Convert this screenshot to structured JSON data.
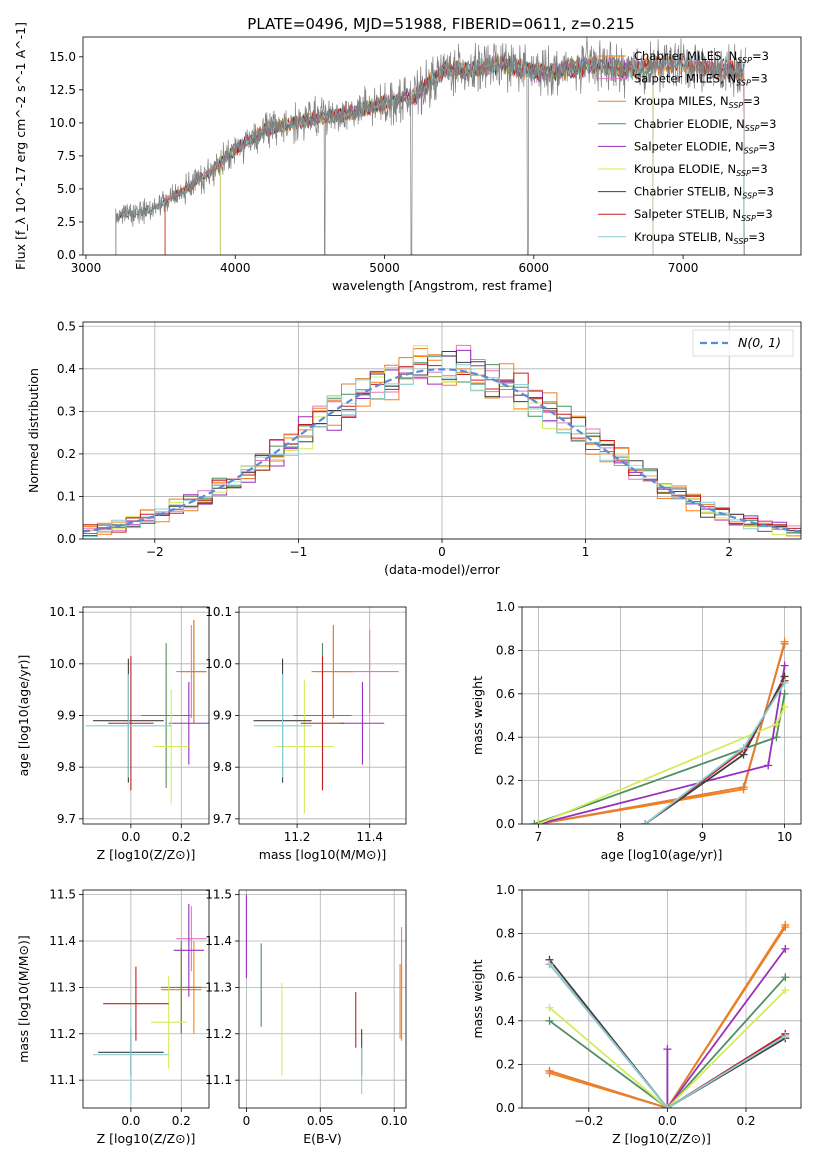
{
  "title": "PLATE=0496, MJD=51988, FIBERID=0611, z=0.215",
  "colors": {
    "Chabrier MILES": "#ff7f0e",
    "Salpeter MILES": "#e377c2",
    "Kroupa MILES": "#e08030",
    "Chabrier ELODIE": "#4f8f60",
    "Salpeter ELODIE": "#9a2fbd",
    "Kroupa ELODIE": "#d4ec5a",
    "Chabrier STELIB": "#404040",
    "Salpeter STELIB": "#c02020",
    "Kroupa STELIB": "#87cfd6",
    "gaussian": "#5b8bd8"
  },
  "chart_data": [
    {
      "id": "spectrum",
      "type": "line",
      "xlabel": "wavelength [Angstrom, rest frame]",
      "ylabel": "Flux [f_λ 10^-17 erg cm^-2 s^-1 A^-1]",
      "xlim": [
        2980,
        7790
      ],
      "ylim": [
        0,
        16.5
      ],
      "xticks": [
        "3000",
        "4000",
        "5000",
        "6000",
        "7000"
      ],
      "yticks": [
        "0.0",
        "2.5",
        "5.0",
        "7.5",
        "10.0",
        "12.5",
        "15.0"
      ],
      "legend_position": "top-right",
      "legend": [
        {
          "model": "Chabrier MILES",
          "nssp": 3
        },
        {
          "model": "Salpeter MILES",
          "nssp": 3
        },
        {
          "model": "Kroupa MILES",
          "nssp": 3
        },
        {
          "model": "Chabrier ELODIE",
          "nssp": 3
        },
        {
          "model": "Salpeter ELODIE",
          "nssp": 3
        },
        {
          "model": "Kroupa ELODIE",
          "nssp": 3
        },
        {
          "model": "Chabrier STELIB",
          "nssp": 3
        },
        {
          "model": "Salpeter STELIB",
          "nssp": 3
        },
        {
          "model": "Kroupa STELIB",
          "nssp": 3
        }
      ],
      "data_envelope": {
        "x": [
          3200,
          3400,
          3600,
          3800,
          4000,
          4200,
          4400,
          4600,
          4800,
          5000,
          5200,
          5400,
          5600,
          5800,
          6000,
          6200,
          6400,
          6600,
          6800,
          7000,
          7200,
          7400
        ],
        "y": [
          3.0,
          3.3,
          4.5,
          6.0,
          8.0,
          9.5,
          10.0,
          10.5,
          10.8,
          11.5,
          12.0,
          14.0,
          14.0,
          14.5,
          13.8,
          14.0,
          14.5,
          14.0,
          14.3,
          14.5,
          14.0,
          14.0
        ]
      }
    },
    {
      "id": "residuals",
      "type": "histogram",
      "xlabel": "(data-model)/error",
      "ylabel": "Normed distribution",
      "xlim": [
        -2.5,
        2.5
      ],
      "ylim": [
        0,
        0.51
      ],
      "xticks": [
        "−2",
        "−1",
        "0",
        "1",
        "2"
      ],
      "yticks": [
        "0.0",
        "0.1",
        "0.2",
        "0.3",
        "0.4",
        "0.5"
      ],
      "grid": true,
      "legend_position": "top-right",
      "legend_label": "N(0, 1)",
      "bin_width": 0.1
    },
    {
      "id": "age-vs-Z",
      "type": "scatter",
      "xlabel": "Z [log10(Z/Z⊙)]",
      "ylabel": "age [log10(age/yr)]",
      "xlim": [
        -0.19,
        0.31
      ],
      "ylim": [
        9.69,
        10.11
      ],
      "xticks": [
        "0.0",
        "0.2"
      ],
      "yticks": [
        "9.7",
        "9.8",
        "9.9",
        "10.0",
        "10.1"
      ],
      "grid": true,
      "points": [
        {
          "model": "Chabrier MILES",
          "x": 0.25,
          "xerr": 0.05,
          "y": 9.985,
          "yerr": 0.1
        },
        {
          "model": "Salpeter MILES",
          "x": 0.24,
          "xerr": 0.06,
          "y": 9.985,
          "yerr": 0.09
        },
        {
          "model": "Kroupa MILES",
          "x": 0.25,
          "xerr": 0.05,
          "y": 9.985,
          "yerr": 0.1
        },
        {
          "model": "Chabrier ELODIE",
          "x": 0.14,
          "xerr": 0.1,
          "y": 9.9,
          "yerr": 0.14
        },
        {
          "model": "Salpeter ELODIE",
          "x": 0.23,
          "xerr": 0.08,
          "y": 9.885,
          "yerr": 0.08
        },
        {
          "model": "Kroupa ELODIE",
          "x": 0.16,
          "xerr": 0.07,
          "y": 9.84,
          "yerr": 0.11
        },
        {
          "model": "Chabrier STELIB",
          "x": -0.01,
          "xerr": 0.14,
          "y": 9.89,
          "yerr": 0.12
        },
        {
          "model": "Salpeter STELIB",
          "x": 0.0,
          "xerr": 0.09,
          "y": 9.885,
          "yerr": 0.13
        },
        {
          "model": "Kroupa STELIB",
          "x": -0.01,
          "xerr": 0.17,
          "y": 9.88,
          "yerr": 0.1
        }
      ]
    },
    {
      "id": "age-vs-mass",
      "type": "scatter",
      "xlabel": "mass [log10(M/M⊙)]",
      "ylabel": "",
      "xlim": [
        11.04,
        11.5
      ],
      "ylim": [
        9.69,
        10.11
      ],
      "xticks": [
        "11.2",
        "11.4"
      ],
      "yticks": [
        "9.7",
        "9.8",
        "9.9",
        "10.0",
        "10.1"
      ],
      "grid": true,
      "points": [
        {
          "model": "Chabrier MILES",
          "x": 11.3,
          "xerr": 0.06,
          "y": 9.985,
          "yerr": 0.09
        },
        {
          "model": "Salpeter MILES",
          "x": 11.4,
          "xerr": 0.08,
          "y": 9.985,
          "yerr": 0.08
        },
        {
          "model": "Kroupa MILES",
          "x": 11.3,
          "xerr": 0.05,
          "y": 9.985,
          "yerr": 0.09
        },
        {
          "model": "Chabrier ELODIE",
          "x": 11.27,
          "xerr": 0.08,
          "y": 9.9,
          "yerr": 0.14
        },
        {
          "model": "Salpeter ELODIE",
          "x": 11.38,
          "xerr": 0.06,
          "y": 9.885,
          "yerr": 0.08
        },
        {
          "model": "Kroupa ELODIE",
          "x": 11.22,
          "xerr": 0.08,
          "y": 9.84,
          "yerr": 0.13
        },
        {
          "model": "Chabrier STELIB",
          "x": 11.16,
          "xerr": 0.08,
          "y": 9.89,
          "yerr": 0.12
        },
        {
          "model": "Salpeter STELIB",
          "x": 11.27,
          "xerr": 0.06,
          "y": 9.885,
          "yerr": 0.13
        },
        {
          "model": "Kroupa STELIB",
          "x": 11.16,
          "xerr": 0.08,
          "y": 9.88,
          "yerr": 0.1
        }
      ]
    },
    {
      "id": "weight-vs-age",
      "type": "line",
      "xlabel": "age  [log10(age/yr)]",
      "ylabel": "mass weight",
      "xlim": [
        6.8,
        10.2
      ],
      "ylim": [
        0,
        1.0
      ],
      "xticks": [
        "7",
        "8",
        "9",
        "10"
      ],
      "yticks": [
        "0.0",
        "0.2",
        "0.4",
        "0.6",
        "0.8",
        "1.0"
      ],
      "grid": true,
      "series": [
        {
          "model": "Chabrier MILES",
          "x": [
            7.0,
            9.5,
            10.0
          ],
          "y": [
            0.0,
            0.16,
            0.84
          ]
        },
        {
          "model": "Salpeter MILES",
          "x": [
            7.0,
            9.5,
            10.0
          ],
          "y": [
            0.0,
            0.17,
            0.83
          ]
        },
        {
          "model": "Kroupa MILES",
          "x": [
            7.0,
            9.5,
            10.0
          ],
          "y": [
            0.0,
            0.17,
            0.83
          ]
        },
        {
          "model": "Chabrier ELODIE",
          "x": [
            6.95,
            9.9,
            10.0
          ],
          "y": [
            0.0,
            0.4,
            0.6
          ]
        },
        {
          "model": "Salpeter ELODIE",
          "x": [
            7.0,
            9.8,
            10.0
          ],
          "y": [
            0.0,
            0.27,
            0.73
          ]
        },
        {
          "model": "Kroupa ELODIE",
          "x": [
            7.0,
            9.9,
            10.0
          ],
          "y": [
            0.0,
            0.46,
            0.54
          ]
        },
        {
          "model": "Chabrier STELIB",
          "x": [
            8.3,
            9.5,
            10.0
          ],
          "y": [
            0.0,
            0.32,
            0.68
          ]
        },
        {
          "model": "Salpeter STELIB",
          "x": [
            8.3,
            9.5,
            10.0
          ],
          "y": [
            0.0,
            0.34,
            0.66
          ]
        },
        {
          "model": "Kroupa STELIB",
          "x": [
            8.3,
            9.5,
            10.0
          ],
          "y": [
            0.0,
            0.35,
            0.65
          ]
        }
      ]
    },
    {
      "id": "mass-vs-Z",
      "type": "scatter",
      "xlabel": "Z [log10(Z/Z⊙)]",
      "ylabel": "mass [log10(M/M⊙)]",
      "xlim": [
        -0.19,
        0.31
      ],
      "ylim": [
        11.04,
        11.51
      ],
      "xticks": [
        "0.0",
        "0.2"
      ],
      "yticks": [
        "11.1",
        "11.2",
        "11.3",
        "11.4",
        "11.5"
      ],
      "grid": true,
      "points": [
        {
          "model": "Chabrier MILES",
          "x": 0.25,
          "xerr": 0.05,
          "y": 11.3,
          "yerr": 0.1
        },
        {
          "model": "Salpeter MILES",
          "x": 0.24,
          "xerr": 0.06,
          "y": 11.405,
          "yerr": 0.07
        },
        {
          "model": "Kroupa MILES",
          "x": 0.2,
          "xerr": 0.08,
          "y": 11.295,
          "yerr": 0.09
        },
        {
          "model": "Chabrier ELODIE",
          "x": 0.2,
          "xerr": 0.08,
          "y": 11.3,
          "yerr": 0.1
        },
        {
          "model": "Salpeter ELODIE",
          "x": 0.23,
          "xerr": 0.06,
          "y": 11.38,
          "yerr": 0.1
        },
        {
          "model": "Kroupa ELODIE",
          "x": 0.15,
          "xerr": 0.07,
          "y": 11.225,
          "yerr": 0.1
        },
        {
          "model": "Chabrier STELIB",
          "x": 0.0,
          "xerr": 0.13,
          "y": 11.16,
          "yerr": 0.05
        },
        {
          "model": "Salpeter STELIB",
          "x": 0.02,
          "xerr": 0.13,
          "y": 11.265,
          "yerr": 0.08
        },
        {
          "model": "Kroupa STELIB",
          "x": 0.0,
          "xerr": 0.15,
          "y": 11.155,
          "yerr": 0.1
        }
      ]
    },
    {
      "id": "mass-vs-ebv",
      "type": "scatter",
      "xlabel": "E(B-V)",
      "ylabel": "",
      "xlim": [
        -0.005,
        0.108
      ],
      "ylim": [
        11.04,
        11.51
      ],
      "xticks": [
        "0",
        "0.05",
        "0.10"
      ],
      "yticks": [
        "11.1",
        "11.2",
        "11.3",
        "11.4",
        "11.5"
      ],
      "grid": true,
      "points": [
        {
          "model": "Chabrier MILES",
          "x": 0.105,
          "y": 11.265,
          "yerr": 0.08
        },
        {
          "model": "Salpeter MILES",
          "x": 0.105,
          "y": 11.36,
          "yerr": 0.07
        },
        {
          "model": "Kroupa MILES",
          "x": 0.104,
          "y": 11.27,
          "yerr": 0.08
        },
        {
          "model": "Chabrier ELODIE",
          "x": 0.01,
          "y": 11.305,
          "yerr": 0.09
        },
        {
          "model": "Salpeter ELODIE",
          "x": 0.0,
          "y": 11.41,
          "yerr": 0.09
        },
        {
          "model": "Kroupa ELODIE",
          "x": 0.024,
          "y": 11.21,
          "yerr": 0.1
        },
        {
          "model": "Chabrier STELIB",
          "x": 0.078,
          "y": 11.16,
          "yerr": 0.05
        },
        {
          "model": "Salpeter STELIB",
          "x": 0.074,
          "y": 11.23,
          "yerr": 0.06
        },
        {
          "model": "Kroupa STELIB",
          "x": 0.078,
          "y": 11.12,
          "yerr": 0.05
        }
      ]
    },
    {
      "id": "weight-vs-Z",
      "type": "line",
      "xlabel": "Z [log10(Z/Z⊙)]",
      "ylabel": "mass weight",
      "xlim": [
        -0.37,
        0.34
      ],
      "ylim": [
        0,
        1.0
      ],
      "xticks": [
        "−0.2",
        "0.0",
        "0.2"
      ],
      "yticks": [
        "0.0",
        "0.2",
        "0.4",
        "0.6",
        "0.8",
        "1.0"
      ],
      "grid": true,
      "series": [
        {
          "model": "Chabrier MILES",
          "x": [
            -0.3,
            0.0,
            0.3
          ],
          "y": [
            0.16,
            0.0,
            0.84
          ]
        },
        {
          "model": "Salpeter MILES",
          "x": [
            -0.3,
            0.0,
            0.3
          ],
          "y": [
            0.17,
            0.0,
            0.34
          ]
        },
        {
          "model": "Kroupa MILES",
          "x": [
            -0.3,
            0.0,
            0.3
          ],
          "y": [
            0.17,
            0.0,
            0.83
          ]
        },
        {
          "model": "Chabrier ELODIE",
          "x": [
            -0.3,
            0.0,
            0.3
          ],
          "y": [
            0.4,
            0.0,
            0.6
          ]
        },
        {
          "model": "Salpeter ELODIE",
          "x": [
            0.0,
            0.0,
            0.3
          ],
          "y": [
            0.27,
            0.0,
            0.73
          ]
        },
        {
          "model": "Kroupa ELODIE",
          "x": [
            -0.3,
            0.0,
            0.3
          ],
          "y": [
            0.46,
            0.0,
            0.54
          ]
        },
        {
          "model": "Chabrier STELIB",
          "x": [
            -0.3,
            0.0,
            0.3
          ],
          "y": [
            0.68,
            0.0,
            0.32
          ]
        },
        {
          "model": "Salpeter STELIB",
          "x": [
            -0.3,
            0.0,
            0.3
          ],
          "y": [
            0.66,
            0.0,
            0.34
          ]
        },
        {
          "model": "Kroupa STELIB",
          "x": [
            -0.3,
            0.0,
            0.3
          ],
          "y": [
            0.66,
            0.0,
            0.33
          ]
        }
      ]
    }
  ]
}
